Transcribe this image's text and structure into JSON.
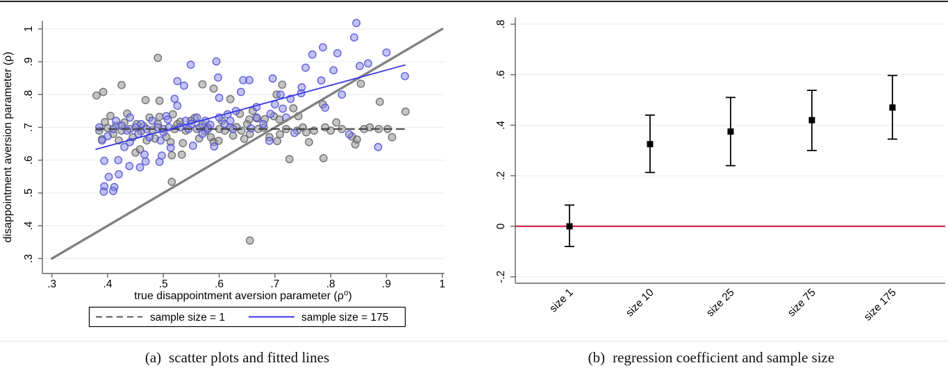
{
  "captions": {
    "left_tag": "(a)",
    "left_text": "scatter plots and fitted lines",
    "right_tag": "(b)",
    "right_text": "regression coefficient and sample size"
  },
  "colors": {
    "axis": "#606060",
    "grid": "#e3edef",
    "gray_point_fill": "#8a8a8a",
    "gray_point_stroke": "#5f5f5f",
    "blue_point_fill": "#8888e8",
    "blue_point_stroke": "#4a4ad2",
    "identity_line": "#828282",
    "dashed_fit_line": "#3d3d3d",
    "blue_fit_line": "#3535e8",
    "reference_line_red": "#d2264c",
    "marker_black": "#000000",
    "legend_border": "#000000"
  },
  "chart_data": [
    {
      "id": "scatter",
      "type": "scatter",
      "xlabel": "true disappointment aversion parameter (ρ⁰)",
      "ylabel": "disappointment aversion parameter (ρ)",
      "xlim": [
        0.3,
        1.0
      ],
      "ylim": [
        0.3,
        1.0
      ],
      "grid": "horizontal",
      "xticks": {
        "values": [
          0.3,
          0.4,
          0.5,
          0.6,
          0.7,
          0.8,
          0.9,
          1.0
        ],
        "labels": [
          ".3",
          ".4",
          ".5",
          ".6",
          ".7",
          ".8",
          ".9",
          "1"
        ]
      },
      "yticks": {
        "values": [
          1.0,
          0.9,
          0.8,
          0.7,
          0.6,
          0.5,
          0.4,
          0.3
        ],
        "labels": [
          "1",
          ".9",
          ".8",
          ".7",
          ".6",
          ".5",
          ".4",
          ".3"
        ]
      },
      "legend": {
        "position": "bottom",
        "entries": [
          {
            "label": "sample size = 1",
            "style": "dashed",
            "color": "#555555"
          },
          {
            "label": "sample size = 175",
            "style": "solid",
            "color": "#3535e8"
          }
        ]
      },
      "series": [
        {
          "name": "sample size = 1",
          "marker": "circle",
          "fill": "#8a8a8a",
          "stroke": "#5f5f5f",
          "points": [
            [
              0.49,
              0.912
            ],
            [
              0.38,
              0.797
            ],
            [
              0.392,
              0.808
            ],
            [
              0.425,
              0.829
            ],
            [
              0.468,
              0.783
            ],
            [
              0.57,
              0.831
            ],
            [
              0.59,
              0.818
            ],
            [
              0.62,
              0.786
            ],
            [
              0.703,
              0.8
            ],
            [
              0.713,
              0.83
            ],
            [
              0.786,
              0.77
            ],
            [
              0.854,
              0.833
            ],
            [
              0.888,
              0.778
            ],
            [
              0.637,
              0.741
            ],
            [
              0.742,
              0.734
            ],
            [
              0.385,
              0.69
            ],
            [
              0.39,
              0.664
            ],
            [
              0.395,
              0.716
            ],
            [
              0.4,
              0.698
            ],
            [
              0.405,
              0.735
            ],
            [
              0.41,
              0.68
            ],
            [
              0.415,
              0.705
            ],
            [
              0.42,
              0.66
            ],
            [
              0.425,
              0.69
            ],
            [
              0.43,
              0.715
            ],
            [
              0.435,
              0.742
            ],
            [
              0.44,
              0.695
            ],
            [
              0.445,
              0.67
            ],
            [
              0.45,
              0.623
            ],
            [
              0.452,
              0.71
            ],
            [
              0.458,
              0.633
            ],
            [
              0.46,
              0.688
            ],
            [
              0.465,
              0.703
            ],
            [
              0.47,
              0.66
            ],
            [
              0.475,
              0.73
            ],
            [
              0.48,
              0.692
            ],
            [
              0.485,
              0.666
            ],
            [
              0.49,
              0.71
            ],
            [
              0.493,
              0.732
            ],
            [
              0.493,
              0.781
            ],
            [
              0.5,
              0.695
            ],
            [
              0.505,
              0.671
            ],
            [
              0.513,
              0.655
            ],
            [
              0.515,
              0.615
            ],
            [
              0.515,
              0.534
            ],
            [
              0.517,
              0.74
            ],
            [
              0.52,
              0.695
            ],
            [
              0.525,
              0.71
            ],
            [
              0.53,
              0.717
            ],
            [
              0.533,
              0.617
            ],
            [
              0.535,
              0.652
            ],
            [
              0.54,
              0.69
            ],
            [
              0.549,
              0.72
            ],
            [
              0.556,
              0.729
            ],
            [
              0.56,
              0.695
            ],
            [
              0.564,
              0.666
            ],
            [
              0.57,
              0.71
            ],
            [
              0.575,
              0.688
            ],
            [
              0.58,
              0.7
            ],
            [
              0.585,
              0.67
            ],
            [
              0.59,
              0.655
            ],
            [
              0.599,
              0.659
            ],
            [
              0.6,
              0.695
            ],
            [
              0.605,
              0.72
            ],
            [
              0.61,
              0.69
            ],
            [
              0.62,
              0.7
            ],
            [
              0.625,
              0.675
            ],
            [
              0.631,
              0.701
            ],
            [
              0.64,
              0.69
            ],
            [
              0.645,
              0.665
            ],
            [
              0.65,
              0.71
            ],
            [
              0.654,
              0.724
            ],
            [
              0.655,
              0.68
            ],
            [
              0.655,
              0.355
            ],
            [
              0.66,
              0.75
            ],
            [
              0.668,
              0.727
            ],
            [
              0.67,
              0.695
            ],
            [
              0.68,
              0.699
            ],
            [
              0.682,
              0.725
            ],
            [
              0.69,
              0.67
            ],
            [
              0.698,
              0.734
            ],
            [
              0.704,
              0.658
            ],
            [
              0.708,
              0.724
            ],
            [
              0.709,
              0.679
            ],
            [
              0.72,
              0.695
            ],
            [
              0.726,
              0.603
            ],
            [
              0.733,
              0.758
            ],
            [
              0.74,
              0.69
            ],
            [
              0.75,
              0.7
            ],
            [
              0.756,
              0.685
            ],
            [
              0.761,
              0.655
            ],
            [
              0.77,
              0.69
            ],
            [
              0.787,
              0.606
            ],
            [
              0.79,
              0.7
            ],
            [
              0.8,
              0.69
            ],
            [
              0.81,
              0.715
            ],
            [
              0.82,
              0.695
            ],
            [
              0.838,
              0.672
            ],
            [
              0.844,
              0.648
            ],
            [
              0.847,
              0.663
            ],
            [
              0.86,
              0.695
            ],
            [
              0.87,
              0.7
            ],
            [
              0.886,
              0.695
            ],
            [
              0.902,
              0.695
            ],
            [
              0.91,
              0.67
            ],
            [
              0.934,
              0.748
            ]
          ]
        },
        {
          "name": "sample size = 175",
          "marker": "circle",
          "fill": "#8888e8",
          "stroke": "#4a4ad2",
          "points": [
            [
              0.394,
              0.52
            ],
            [
              0.412,
              0.518
            ],
            [
              0.393,
              0.504
            ],
            [
              0.41,
              0.506
            ],
            [
              0.402,
              0.549
            ],
            [
              0.42,
              0.557
            ],
            [
              0.439,
              0.582
            ],
            [
              0.394,
              0.598
            ],
            [
              0.419,
              0.6
            ],
            [
              0.458,
              0.578
            ],
            [
              0.468,
              0.596
            ],
            [
              0.493,
              0.595
            ],
            [
              0.466,
              0.617
            ],
            [
              0.497,
              0.614
            ],
            [
              0.513,
              0.638
            ],
            [
              0.553,
              0.644
            ],
            [
              0.591,
              0.642
            ],
            [
              0.43,
              0.64
            ],
            [
              0.44,
              0.655
            ],
            [
              0.39,
              0.66
            ],
            [
              0.4,
              0.673
            ],
            [
              0.385,
              0.7
            ],
            [
              0.41,
              0.695
            ],
            [
              0.415,
              0.72
            ],
            [
              0.425,
              0.705
            ],
            [
              0.435,
              0.69
            ],
            [
              0.44,
              0.73
            ],
            [
              0.45,
              0.7
            ],
            [
              0.455,
              0.68
            ],
            [
              0.46,
              0.71
            ],
            [
              0.47,
              0.695
            ],
            [
              0.475,
              0.67
            ],
            [
              0.48,
              0.72
            ],
            [
              0.49,
              0.7
            ],
            [
              0.495,
              0.66
            ],
            [
              0.5,
              0.685
            ],
            [
              0.505,
              0.734
            ],
            [
              0.508,
              0.724
            ],
            [
              0.51,
              0.7
            ],
            [
              0.52,
              0.787
            ],
            [
              0.525,
              0.841
            ],
            [
              0.525,
              0.766
            ],
            [
              0.537,
              0.827
            ],
            [
              0.53,
              0.7
            ],
            [
              0.54,
              0.72
            ],
            [
              0.545,
              0.695
            ],
            [
              0.549,
              0.891
            ],
            [
              0.55,
              0.71
            ],
            [
              0.56,
              0.73
            ],
            [
              0.565,
              0.7
            ],
            [
              0.57,
              0.68
            ],
            [
              0.575,
              0.72
            ],
            [
              0.58,
              0.695
            ],
            [
              0.584,
              0.708
            ],
            [
              0.595,
              0.901
            ],
            [
              0.598,
              0.852
            ],
            [
              0.6,
              0.79
            ],
            [
              0.6,
              0.73
            ],
            [
              0.61,
              0.71
            ],
            [
              0.615,
              0.74
            ],
            [
              0.62,
              0.72
            ],
            [
              0.625,
              0.695
            ],
            [
              0.63,
              0.75
            ],
            [
              0.639,
              0.808
            ],
            [
              0.643,
              0.844
            ],
            [
              0.654,
              0.844
            ],
            [
              0.657,
              0.697
            ],
            [
              0.667,
              0.762
            ],
            [
              0.667,
              0.73
            ],
            [
              0.679,
              0.71
            ],
            [
              0.69,
              0.659
            ],
            [
              0.692,
              0.741
            ],
            [
              0.696,
              0.849
            ],
            [
              0.7,
              0.77
            ],
            [
              0.71,
              0.8
            ],
            [
              0.714,
              0.757
            ],
            [
              0.72,
              0.73
            ],
            [
              0.728,
              0.787
            ],
            [
              0.735,
              0.683
            ],
            [
              0.747,
              0.804
            ],
            [
              0.748,
              0.822
            ],
            [
              0.755,
              0.882
            ],
            [
              0.767,
              0.922
            ],
            [
              0.786,
              0.944
            ],
            [
              0.783,
              0.843
            ],
            [
              0.79,
              0.76
            ],
            [
              0.805,
              0.874
            ],
            [
              0.812,
              0.926
            ],
            [
              0.82,
              0.8
            ],
            [
              0.833,
              0.679
            ],
            [
              0.842,
              0.974
            ],
            [
              0.846,
              1.018
            ],
            [
              0.852,
              0.887
            ],
            [
              0.867,
              0.895
            ],
            [
              0.885,
              0.64
            ],
            [
              0.9,
              0.928
            ],
            [
              0.933,
              0.856
            ]
          ]
        }
      ],
      "lines": [
        {
          "name": "identity-line",
          "x1": 0.3,
          "y1": 0.3,
          "x2": 1.0,
          "y2": 1.0,
          "color": "#828282",
          "width": 3.4,
          "dash": ""
        },
        {
          "name": "fit-sample-size-1",
          "x1": 0.38,
          "y1": 0.695,
          "x2": 0.932,
          "y2": 0.695,
          "color": "#3d3d3d",
          "width": 2,
          "dash": "11,7"
        },
        {
          "name": "fit-sample-size-175",
          "x1": 0.379,
          "y1": 0.633,
          "x2": 0.933,
          "y2": 0.89,
          "color": "#3535e8",
          "width": 1.8,
          "dash": ""
        }
      ]
    },
    {
      "id": "coef",
      "type": "errorbar",
      "categories": [
        "size 1",
        "size 10",
        "size 25",
        "size 75",
        "size 175"
      ],
      "estimates": [
        0.0,
        0.325,
        0.375,
        0.42,
        0.47
      ],
      "ci_low": [
        -0.08,
        0.213,
        0.24,
        0.3,
        0.345
      ],
      "ci_high": [
        0.084,
        0.44,
        0.51,
        0.538,
        0.597
      ],
      "yticks": {
        "values": [
          0.8,
          0.6,
          0.4,
          0.2,
          0.0,
          -0.2
        ],
        "labels": [
          ".8",
          ".6",
          ".4",
          ".2",
          "0",
          "-.2"
        ]
      },
      "ylim": [
        -0.25,
        0.85
      ],
      "grid": "horizontal",
      "ref_line": {
        "y": 0,
        "color": "#d2264c"
      },
      "marker_color": "#000000"
    }
  ]
}
